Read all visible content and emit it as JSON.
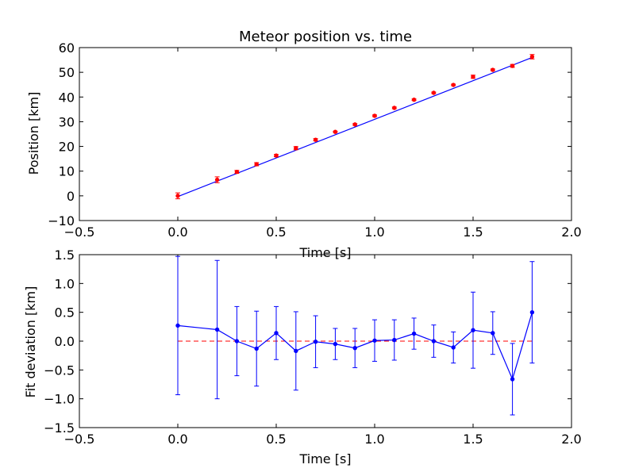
{
  "chart_data": [
    {
      "type": "scatter",
      "title": "Meteor position vs. time",
      "xlabel": "Time [s]",
      "ylabel": "Position [km]",
      "xlim": [
        -0.5,
        2.0
      ],
      "ylim": [
        -10,
        60
      ],
      "xticks": [
        "−0.5",
        "0.0",
        "0.5",
        "1.0",
        "1.5",
        "2.0"
      ],
      "yticks": [
        "−10",
        "0",
        "10",
        "20",
        "30",
        "40",
        "50",
        "60"
      ],
      "xtick_values": [
        -0.5,
        0.0,
        0.5,
        1.0,
        1.5,
        2.0
      ],
      "ytick_values": [
        -10,
        0,
        10,
        20,
        30,
        40,
        50,
        60
      ],
      "grid": false,
      "colors": {
        "fit_line": "#0000ff",
        "points": "#ff0000",
        "errorbars": "#ff0000"
      },
      "fit": {
        "x": [
          0.0,
          1.8
        ],
        "y": [
          -0.3,
          56.0
        ]
      },
      "series": [
        {
          "x": [
            0.0,
            0.2,
            0.3,
            0.4,
            0.5,
            0.6,
            0.7,
            0.8,
            0.9,
            1.0,
            1.1,
            1.2,
            1.3,
            1.4,
            1.5,
            1.6,
            1.7,
            1.8
          ],
          "y": [
            0.0,
            6.5,
            9.7,
            12.8,
            16.3,
            19.3,
            22.7,
            25.9,
            28.9,
            32.4,
            35.6,
            38.9,
            41.7,
            44.9,
            48.2,
            51.0,
            52.6,
            56.3
          ],
          "yerr": [
            1.2,
            1.2,
            0.6,
            0.65,
            0.45,
            0.65,
            0.45,
            0.25,
            0.35,
            0.35,
            0.35,
            0.3,
            0.3,
            0.3,
            0.65,
            0.35,
            0.6,
            0.9
          ]
        }
      ]
    },
    {
      "type": "line",
      "title": "",
      "xlabel": "Time [s]",
      "ylabel": "Fit deviation [km]",
      "xlim": [
        -0.5,
        2.0
      ],
      "ylim": [
        -1.5,
        1.5
      ],
      "xticks": [
        "−0.5",
        "0.0",
        "0.5",
        "1.0",
        "1.5",
        "2.0"
      ],
      "yticks": [
        "−1.5",
        "−1.0",
        "−0.5",
        "0.0",
        "0.5",
        "1.0",
        "1.5"
      ],
      "xtick_values": [
        -0.5,
        0.0,
        0.5,
        1.0,
        1.5,
        2.0
      ],
      "ytick_values": [
        -1.5,
        -1.0,
        -0.5,
        0.0,
        0.5,
        1.0,
        1.5
      ],
      "grid": false,
      "colors": {
        "series": "#0000ff",
        "zero_line": "#ff0000"
      },
      "zero_line": {
        "x": [
          0.0,
          1.8
        ],
        "y": 0.0
      },
      "series": [
        {
          "x": [
            0.0,
            0.2,
            0.3,
            0.4,
            0.5,
            0.6,
            0.7,
            0.8,
            0.9,
            1.0,
            1.1,
            1.2,
            1.3,
            1.4,
            1.5,
            1.6,
            1.7,
            1.8
          ],
          "y": [
            0.27,
            0.2,
            0.0,
            -0.13,
            0.14,
            -0.17,
            -0.01,
            -0.05,
            -0.12,
            0.01,
            0.02,
            0.13,
            0.0,
            -0.11,
            0.19,
            0.14,
            -0.66,
            0.5
          ],
          "yerr": [
            1.2,
            1.2,
            0.6,
            0.65,
            0.46,
            0.68,
            0.45,
            0.27,
            0.34,
            0.36,
            0.35,
            0.27,
            0.28,
            0.27,
            0.66,
            0.37,
            0.62,
            0.88
          ]
        }
      ]
    }
  ]
}
